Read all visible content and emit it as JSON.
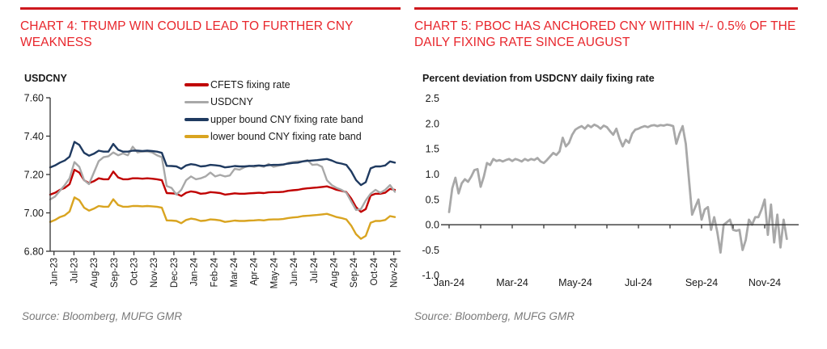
{
  "colors": {
    "title_red": "#E8262C",
    "rule_red": "#CE181E",
    "source_gray": "#7A7A7A",
    "axis_black": "#333333"
  },
  "chart_data": [
    {
      "id": "chart4",
      "type": "line",
      "title": "CHART 4: TRUMP WIN COULD LEAD TO FURTHER CNY WEAKNESS",
      "ylabel": "USDCNY",
      "source": "Source: Bloomberg, MUFG GMR",
      "grid": false,
      "legend_position": "top-right",
      "ylim": [
        6.8,
        7.6
      ],
      "yticks": [
        "7.60",
        "7.40",
        "7.20",
        "7.00",
        "6.80"
      ],
      "x_categories": [
        "Jun-23",
        "Jul-23",
        "Aug-23",
        "Sep-23",
        "Oct-23",
        "Nov-23",
        "Dec-23",
        "Jan-24",
        "Feb-24",
        "Mar-24",
        "Apr-24",
        "May-24",
        "Jun-24",
        "Jul-24",
        "Aug-24",
        "Sep-24",
        "Oct-24",
        "Nov-24"
      ],
      "points_per_month": 4,
      "series": [
        {
          "name": "CFETS fixing rate",
          "color": "#C00000",
          "values": [
            7.095,
            7.105,
            7.12,
            7.13,
            7.15,
            7.225,
            7.21,
            7.17,
            7.155,
            7.165,
            7.18,
            7.175,
            7.175,
            7.215,
            7.185,
            7.175,
            7.175,
            7.18,
            7.18,
            7.178,
            7.18,
            7.178,
            7.175,
            7.17,
            7.103,
            7.102,
            7.1,
            7.088,
            7.105,
            7.112,
            7.108,
            7.1,
            7.102,
            7.108,
            7.106,
            7.103,
            7.095,
            7.098,
            7.102,
            7.1,
            7.1,
            7.102,
            7.103,
            7.105,
            7.103,
            7.107,
            7.108,
            7.108,
            7.11,
            7.115,
            7.118,
            7.12,
            7.125,
            7.128,
            7.13,
            7.132,
            7.135,
            7.138,
            7.13,
            7.12,
            7.115,
            7.108,
            7.075,
            7.03,
            7.005,
            7.02,
            7.09,
            7.1,
            7.1,
            7.105,
            7.125,
            7.12
          ]
        },
        {
          "name": "USDCNY",
          "color": "#A8A8A8",
          "values": [
            7.07,
            7.085,
            7.115,
            7.145,
            7.18,
            7.265,
            7.24,
            7.17,
            7.15,
            7.21,
            7.27,
            7.29,
            7.295,
            7.315,
            7.3,
            7.31,
            7.3,
            7.345,
            7.315,
            7.32,
            7.32,
            7.315,
            7.3,
            7.29,
            7.14,
            7.13,
            7.095,
            7.12,
            7.17,
            7.19,
            7.175,
            7.18,
            7.19,
            7.21,
            7.19,
            7.198,
            7.19,
            7.195,
            7.23,
            7.225,
            7.238,
            7.245,
            7.24,
            7.246,
            7.24,
            7.255,
            7.24,
            7.246,
            7.25,
            7.26,
            7.265,
            7.268,
            7.268,
            7.275,
            7.25,
            7.252,
            7.24,
            7.17,
            7.145,
            7.13,
            7.12,
            7.105,
            7.06,
            7.015,
            7.02,
            7.065,
            7.1,
            7.12,
            7.105,
            7.12,
            7.145,
            7.11
          ]
        },
        {
          "name": "upper bound CNY fixing rate band",
          "color": "#1F3A60",
          "values": [
            7.237,
            7.247,
            7.262,
            7.273,
            7.293,
            7.37,
            7.354,
            7.313,
            7.298,
            7.308,
            7.324,
            7.319,
            7.319,
            7.359,
            7.329,
            7.319,
            7.319,
            7.324,
            7.324,
            7.322,
            7.324,
            7.322,
            7.319,
            7.313,
            7.245,
            7.244,
            7.242,
            7.23,
            7.247,
            7.254,
            7.25,
            7.242,
            7.244,
            7.25,
            7.248,
            7.245,
            7.237,
            7.24,
            7.244,
            7.242,
            7.242,
            7.244,
            7.245,
            7.247,
            7.245,
            7.249,
            7.25,
            7.25,
            7.252,
            7.257,
            7.26,
            7.262,
            7.268,
            7.271,
            7.273,
            7.275,
            7.278,
            7.281,
            7.273,
            7.262,
            7.257,
            7.25,
            7.217,
            7.171,
            7.145,
            7.16,
            7.232,
            7.242,
            7.242,
            7.247,
            7.268,
            7.262
          ]
        },
        {
          "name": "lower bound CNY fixing rate band",
          "color": "#D9A420",
          "values": [
            6.953,
            6.963,
            6.978,
            6.987,
            7.007,
            7.081,
            7.066,
            7.027,
            7.012,
            7.022,
            7.036,
            7.032,
            7.032,
            7.071,
            7.041,
            7.032,
            7.032,
            7.036,
            7.036,
            7.034,
            7.036,
            7.034,
            7.032,
            7.027,
            6.961,
            6.96,
            6.958,
            6.946,
            6.963,
            6.97,
            6.966,
            6.958,
            6.96,
            6.966,
            6.964,
            6.961,
            6.953,
            6.956,
            6.96,
            6.958,
            6.958,
            6.96,
            6.961,
            6.963,
            6.961,
            6.965,
            6.966,
            6.966,
            6.968,
            6.973,
            6.976,
            6.978,
            6.983,
            6.985,
            6.987,
            6.989,
            6.992,
            6.995,
            6.987,
            6.978,
            6.973,
            6.966,
            6.934,
            6.889,
            6.865,
            6.88,
            6.948,
            6.958,
            6.958,
            6.963,
            6.983,
            6.978
          ]
        }
      ]
    },
    {
      "id": "chart5",
      "type": "line",
      "title": "CHART 5: PBOC HAS ANCHORED CNY WITHIN +/- 0.5% OF THE DAILY FIXING RATE SINCE AUGUST",
      "subtitle": "Percent deviation from USDCNY daily fixing rate",
      "source": "Source: Bloomberg, MUFG GMR",
      "grid": false,
      "ylim": [
        -1.0,
        2.5
      ],
      "yticks": [
        "2.5",
        "2.0",
        "1.5",
        "1.0",
        "0.5",
        "0.0",
        "-0.5",
        "-1.0"
      ],
      "xticks": [
        "Jan-24",
        "Mar-24",
        "May-24",
        "Jul-24",
        "Sep-24",
        "Nov-24"
      ],
      "points_per_month": 10,
      "series": [
        {
          "name": "percent deviation from daily fixing rate",
          "color": "#A8A8A8",
          "values": [
            0.25,
            0.72,
            0.93,
            0.62,
            0.82,
            0.9,
            0.85,
            0.95,
            1.08,
            1.1,
            0.75,
            0.95,
            1.22,
            1.18,
            1.3,
            1.26,
            1.28,
            1.25,
            1.28,
            1.3,
            1.26,
            1.3,
            1.28,
            1.25,
            1.3,
            1.27,
            1.3,
            1.28,
            1.32,
            1.25,
            1.22,
            1.28,
            1.35,
            1.42,
            1.38,
            1.45,
            1.72,
            1.55,
            1.62,
            1.78,
            1.88,
            1.92,
            1.95,
            1.9,
            1.97,
            1.93,
            1.98,
            1.95,
            1.9,
            1.96,
            1.93,
            1.85,
            1.78,
            1.9,
            1.7,
            1.55,
            1.68,
            1.62,
            1.8,
            1.88,
            1.9,
            1.93,
            1.95,
            1.93,
            1.96,
            1.97,
            1.95,
            1.97,
            1.96,
            1.98,
            1.97,
            1.95,
            1.6,
            1.8,
            1.95,
            1.6,
            0.9,
            0.2,
            0.35,
            0.5,
            0.1,
            0.3,
            0.35,
            -0.1,
            0.15,
            -0.15,
            -0.55,
            0.0,
            0.05,
            0.1,
            -0.1,
            -0.12,
            -0.1,
            -0.5,
            -0.3,
            0.1,
            0.0,
            0.15,
            0.15,
            0.3,
            0.5,
            -0.2,
            0.4,
            -0.35,
            0.2,
            -0.45,
            0.1,
            -0.28
          ]
        }
      ]
    }
  ]
}
